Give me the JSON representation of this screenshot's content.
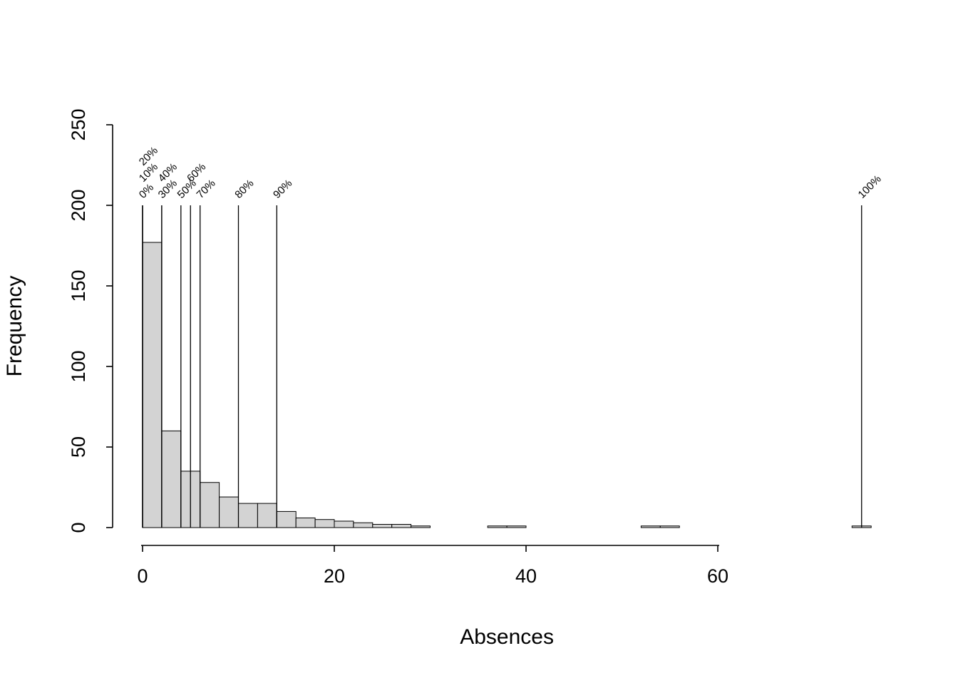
{
  "chart_data": {
    "type": "bar",
    "subtype": "histogram",
    "title": "",
    "xlabel": "Absences",
    "ylabel": "Frequency",
    "xlim": [
      0,
      76
    ],
    "ylim": [
      0,
      250
    ],
    "x_ticks": [
      0,
      20,
      40,
      60
    ],
    "x_tick_labels": [
      "0",
      "20",
      "40",
      "60"
    ],
    "y_ticks": [
      0,
      50,
      100,
      150,
      200,
      250
    ],
    "y_tick_labels": [
      "0",
      "50",
      "100",
      "150",
      "200",
      "250"
    ],
    "bar_fill": "#d3d3d3",
    "bar_stroke": "#000000",
    "background": "#ffffff",
    "grid": false,
    "bins": [
      {
        "start": 0,
        "end": 2,
        "count": 177
      },
      {
        "start": 2,
        "end": 4,
        "count": 60
      },
      {
        "start": 4,
        "end": 6,
        "count": 35
      },
      {
        "start": 6,
        "end": 8,
        "count": 28
      },
      {
        "start": 8,
        "end": 10,
        "count": 19
      },
      {
        "start": 10,
        "end": 12,
        "count": 15
      },
      {
        "start": 12,
        "end": 14,
        "count": 15
      },
      {
        "start": 14,
        "end": 16,
        "count": 10
      },
      {
        "start": 16,
        "end": 18,
        "count": 6
      },
      {
        "start": 18,
        "end": 20,
        "count": 5
      },
      {
        "start": 20,
        "end": 22,
        "count": 4
      },
      {
        "start": 22,
        "end": 24,
        "count": 3
      },
      {
        "start": 24,
        "end": 26,
        "count": 2
      },
      {
        "start": 26,
        "end": 28,
        "count": 2
      },
      {
        "start": 28,
        "end": 30,
        "count": 1
      },
      {
        "start": 36,
        "end": 38,
        "count": 1
      },
      {
        "start": 38,
        "end": 40,
        "count": 1
      },
      {
        "start": 52,
        "end": 54,
        "count": 1
      },
      {
        "start": 54,
        "end": 56,
        "count": 1
      },
      {
        "start": 74,
        "end": 76,
        "count": 1
      }
    ],
    "percentile_line_height": 200,
    "percentiles": [
      {
        "label": "0%",
        "value": 0,
        "stagger": 0
      },
      {
        "label": "10%",
        "value": 0,
        "stagger": 1
      },
      {
        "label": "20%",
        "value": 0,
        "stagger": 2
      },
      {
        "label": "30%",
        "value": 2,
        "stagger": 0
      },
      {
        "label": "40%",
        "value": 2,
        "stagger": 1
      },
      {
        "label": "50%",
        "value": 4,
        "stagger": 0
      },
      {
        "label": "60%",
        "value": 5,
        "stagger": 1
      },
      {
        "label": "70%",
        "value": 6,
        "stagger": 0
      },
      {
        "label": "80%",
        "value": 10,
        "stagger": 0
      },
      {
        "label": "90%",
        "value": 14,
        "stagger": 0
      },
      {
        "label": "100%",
        "value": 75,
        "stagger": 0
      }
    ]
  }
}
